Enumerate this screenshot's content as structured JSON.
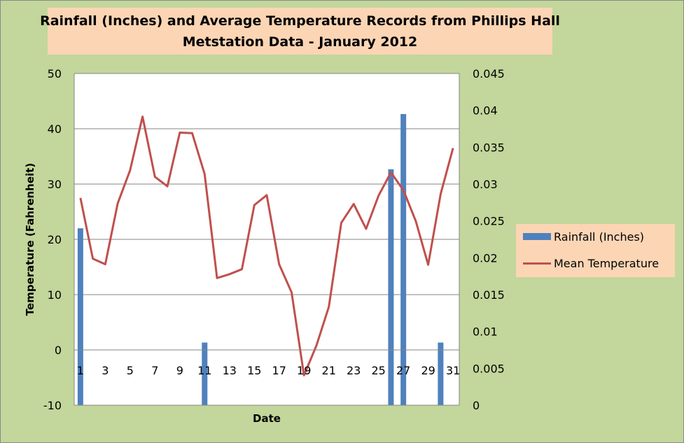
{
  "chart_data": {
    "type": "bar+line",
    "title_lines": [
      "Rainfall (Inches) and Average Temperature Records from Phillips Hall",
      "Metstation Data - January 2012"
    ],
    "xlabel": "Date",
    "ylabel": "Temperature (Fahrenheit)",
    "ylim": [
      -10,
      50
    ],
    "y_ticks": [
      "-10",
      "0",
      "10",
      "20",
      "30",
      "40",
      "50"
    ],
    "y2lim": [
      0,
      0.045
    ],
    "y2_ticks": [
      "0",
      "0.005",
      "0.01",
      "0.015",
      "0.02",
      "0.025",
      "0.03",
      "0.035",
      "0.04",
      "0.045"
    ],
    "x": [
      1,
      2,
      3,
      4,
      5,
      6,
      7,
      8,
      9,
      10,
      11,
      12,
      13,
      14,
      15,
      16,
      17,
      18,
      19,
      20,
      21,
      22,
      23,
      24,
      25,
      26,
      27,
      28,
      29,
      30,
      31
    ],
    "x_tick_labels": [
      "1",
      "3",
      "5",
      "7",
      "9",
      "11",
      "13",
      "15",
      "17",
      "19",
      "21",
      "23",
      "25",
      "27",
      "29",
      "31"
    ],
    "grid": true,
    "legend_position": "right",
    "series": [
      {
        "name": "Rainfall (Inches)",
        "type": "bar",
        "axis": "right",
        "color": "#4f81bd",
        "values": [
          0.024,
          0,
          0,
          0,
          0,
          0,
          0,
          0,
          0,
          0,
          0.0085,
          0,
          0,
          0,
          0,
          0,
          0,
          0,
          0,
          0,
          0,
          0,
          0,
          0,
          0,
          0.032,
          0.0395,
          0,
          0,
          0.0085,
          0
        ]
      },
      {
        "name": "Mean Temperature",
        "type": "line",
        "axis": "left",
        "color": "#c0504d",
        "values": [
          27.5,
          16.5,
          15.5,
          26.5,
          32.5,
          42.2,
          31.3,
          29.6,
          39.3,
          39.2,
          31.8,
          13.0,
          13.7,
          14.6,
          26.2,
          28.0,
          15.5,
          10.4,
          -4.6,
          0.8,
          7.8,
          23.0,
          26.4,
          21.9,
          27.9,
          32.1,
          28.9,
          23.3,
          15.4,
          28.2,
          36.5
        ]
      }
    ]
  }
}
